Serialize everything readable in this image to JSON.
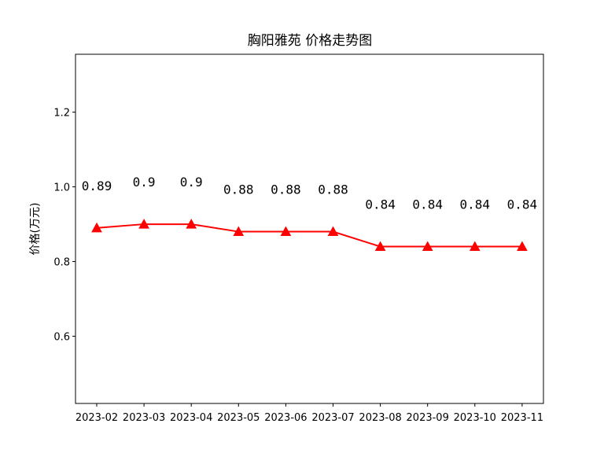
{
  "chart_data": {
    "type": "line",
    "title": "胸阳雅苑 价格走势图",
    "xlabel": "",
    "ylabel": "价格(万元)",
    "categories": [
      "2023-02",
      "2023-03",
      "2023-04",
      "2023-05",
      "2023-06",
      "2023-07",
      "2023-08",
      "2023-09",
      "2023-10",
      "2023-11"
    ],
    "series": [
      {
        "values": [
          0.89,
          0.9,
          0.9,
          0.88,
          0.88,
          0.88,
          0.84,
          0.84,
          0.84,
          0.84
        ],
        "color": "#ff0000",
        "marker": "triangle"
      }
    ],
    "data_labels": [
      "0.89",
      "0.9",
      "0.9",
      "0.88",
      "0.88",
      "0.88",
      "0.84",
      "0.84",
      "0.84",
      "0.84"
    ],
    "ylim": [
      0.42,
      1.355
    ],
    "yticks": [
      0.6,
      0.8,
      1.0,
      1.2
    ],
    "ytick_labels": [
      "0.6",
      "0.8",
      "1.0",
      "1.2"
    ],
    "grid": false,
    "legend": false
  }
}
